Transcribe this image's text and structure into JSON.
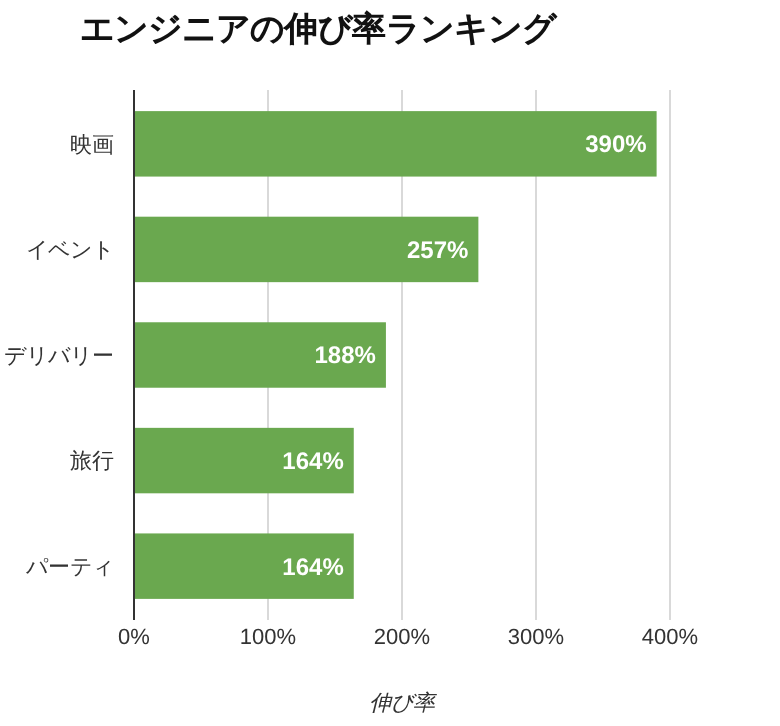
{
  "chart_data": {
    "type": "bar",
    "orientation": "horizontal",
    "title": "エンジニアの伸び率ランキング",
    "xlabel": "伸び率",
    "categories": [
      "映画",
      "イベント",
      "デリバリー",
      "旅行",
      "パーティ"
    ],
    "values": [
      390,
      257,
      188,
      164,
      164
    ],
    "value_labels": [
      "390%",
      "257%",
      "188%",
      "164%",
      "164%"
    ],
    "color": "#6aa84f",
    "xlim": [
      0,
      400
    ],
    "xticks": [
      {
        "value": 0,
        "label": "0%"
      },
      {
        "value": 100,
        "label": "100%"
      },
      {
        "value": 200,
        "label": "200%"
      },
      {
        "value": 300,
        "label": "300%"
      },
      {
        "value": 400,
        "label": "400%"
      }
    ],
    "grid": "x"
  }
}
